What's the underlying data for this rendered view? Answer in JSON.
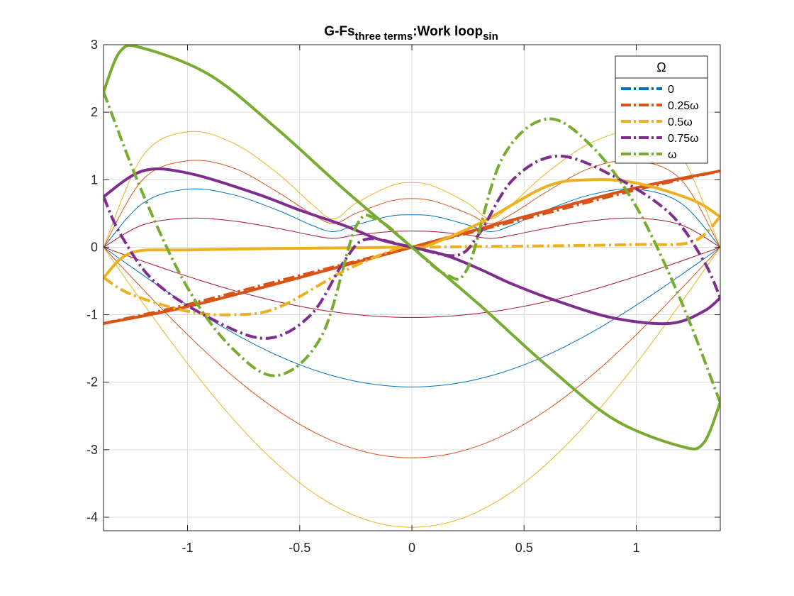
{
  "chart_data": {
    "type": "line",
    "title": "G-Fs",
    "title_sub1": "three terms",
    "title_mid": ":Work loop",
    "title_sub2": "sin",
    "xlabel": "",
    "ylabel": "",
    "xlim": [
      -1.3744,
      1.3744
    ],
    "ylim": [
      -4.2,
      3.0
    ],
    "xticks": [
      -1,
      -0.5,
      0,
      0.5,
      1
    ],
    "xtick_labels": [
      "-1",
      "-0.5",
      "0",
      "0.5",
      "1"
    ],
    "yticks": [
      -4,
      -3,
      -2,
      -1,
      0,
      1,
      2,
      3
    ],
    "ytick_labels": [
      "-4",
      "-3",
      "-2",
      "-1",
      "0",
      "1",
      "2",
      "3"
    ],
    "grid": true,
    "legend": {
      "title": "Ω",
      "placement": "top-right",
      "entries": [
        {
          "label": "0",
          "color": "#0072BD"
        },
        {
          "label": "0.25ω",
          "color": "#D95319"
        },
        {
          "label": "0.5ω",
          "color": "#EDB120"
        },
        {
          "label": "0.75ω",
          "color": "#7E2F8E"
        },
        {
          "label": "ω",
          "color": "#77AC30"
        }
      ]
    },
    "thin_loops": [
      {
        "color": "#0072BD",
        "upper": {
          "x": [
            -1.374,
            -1.2,
            -1.0,
            -0.8,
            -0.6,
            -0.45,
            -0.35,
            -0.25,
            -0.1,
            0.0,
            0.1,
            0.25,
            0.35,
            0.45,
            0.6,
            0.8,
            1.0,
            1.2,
            1.374
          ],
          "y": [
            0,
            0.65,
            0.86,
            0.78,
            0.55,
            0.33,
            0.23,
            0.33,
            0.46,
            0.48,
            0.46,
            0.33,
            0.23,
            0.33,
            0.55,
            0.78,
            0.86,
            0.65,
            0
          ]
        },
        "lower_min": -2.07
      },
      {
        "color": "#D95319",
        "upper": {
          "x": [
            -1.374,
            -1.2,
            -1.0,
            -0.8,
            -0.6,
            -0.45,
            -0.35,
            -0.25,
            -0.1,
            0.0,
            0.1,
            0.25,
            0.35,
            0.45,
            0.6,
            0.8,
            1.0,
            1.2,
            1.374
          ],
          "y": [
            0,
            1.0,
            1.28,
            1.18,
            0.82,
            0.5,
            0.35,
            0.5,
            0.68,
            0.72,
            0.68,
            0.5,
            0.35,
            0.5,
            0.82,
            1.18,
            1.28,
            1.0,
            0
          ]
        },
        "lower_min": -3.12
      },
      {
        "color": "#EDB120",
        "upper": {
          "x": [
            -1.374,
            -1.2,
            -1.0,
            -0.8,
            -0.6,
            -0.45,
            -0.35,
            -0.25,
            -0.1,
            0.0,
            0.1,
            0.25,
            0.35,
            0.45,
            0.6,
            0.8,
            1.0,
            1.2,
            1.374
          ],
          "y": [
            0,
            1.35,
            1.71,
            1.55,
            1.1,
            0.65,
            0.42,
            0.65,
            0.9,
            0.96,
            0.9,
            0.65,
            0.42,
            0.65,
            1.1,
            1.55,
            1.71,
            1.35,
            0
          ]
        },
        "lower_min": -4.15
      },
      {
        "color": "#A2142F",
        "upper": {
          "x": [
            -1.374,
            -1.2,
            -1.0,
            -0.8,
            -0.6,
            -0.45,
            -0.35,
            -0.25,
            -0.1,
            0.0,
            0.1,
            0.25,
            0.35,
            0.45,
            0.6,
            0.8,
            1.0,
            1.2,
            1.374
          ],
          "y": [
            0,
            0.33,
            0.43,
            0.39,
            0.28,
            0.18,
            0.13,
            0.18,
            0.23,
            0.24,
            0.23,
            0.18,
            0.13,
            0.18,
            0.28,
            0.39,
            0.43,
            0.33,
            0
          ]
        },
        "lower_min": -1.04
      }
    ],
    "series": [
      {
        "name": "0.25ω",
        "color": "#D95319",
        "thick": {
          "x": [
            -1.374,
            -1.0,
            -0.5,
            0.0,
            0.5,
            1.0,
            1.374
          ],
          "y": [
            -1.13,
            -0.88,
            -0.45,
            0.0,
            0.45,
            0.88,
            1.13
          ]
        },
        "dashed": {
          "x": [
            -1.374,
            -1.0,
            -0.5,
            0.0,
            0.5,
            1.0,
            1.374
          ],
          "y": [
            -1.13,
            -0.85,
            -0.42,
            0.0,
            0.42,
            0.85,
            1.13
          ]
        }
      },
      {
        "name": "0.5ω",
        "color": "#EDB120",
        "thick": {
          "x": [
            -1.374,
            -1.25,
            -1.0,
            -0.6,
            -0.3,
            -0.05,
            0.0,
            0.05,
            0.3,
            0.6,
            0.8,
            1.0,
            1.25,
            1.374
          ],
          "y": [
            -0.45,
            -0.08,
            -0.04,
            -0.02,
            -0.01,
            0.0,
            0.0,
            0.0,
            0.35,
            0.9,
            1.0,
            0.95,
            0.7,
            0.45
          ]
        },
        "dashed": {
          "x": [
            -1.374,
            -1.25,
            -1.0,
            -0.8,
            -0.6,
            -0.3,
            -0.05,
            0.0,
            0.05,
            0.3,
            0.6,
            1.0,
            1.25,
            1.374
          ],
          "y": [
            -0.45,
            -0.7,
            -0.95,
            -1.0,
            -0.9,
            -0.35,
            0.0,
            0.0,
            0.0,
            0.01,
            0.02,
            0.04,
            0.08,
            0.45
          ]
        }
      },
      {
        "name": "0.75ω",
        "color": "#7E2F8E",
        "thick": {
          "x": [
            -1.374,
            -1.2,
            -1.0,
            -0.7,
            -0.5,
            -0.3,
            -0.15,
            0.0,
            0.15,
            0.3,
            0.45,
            0.65,
            0.9,
            1.15,
            1.3,
            1.374
          ],
          "y": [
            0.75,
            1.13,
            1.1,
            0.8,
            0.55,
            0.32,
            0.12,
            0.0,
            -0.12,
            -0.32,
            -0.55,
            -0.8,
            -1.05,
            -1.13,
            -0.95,
            -0.75
          ]
        },
        "dashed": {
          "x": [
            -1.374,
            -1.3,
            -1.15,
            -0.9,
            -0.65,
            -0.45,
            -0.3,
            -0.2,
            0.0,
            0.2,
            0.3,
            0.45,
            0.65,
            0.9,
            1.15,
            1.3,
            1.374
          ],
          "y": [
            0.75,
            0.2,
            -0.5,
            -1.05,
            -1.35,
            -1.0,
            -0.2,
            0.12,
            0.0,
            -0.12,
            0.2,
            1.0,
            1.35,
            1.05,
            0.5,
            -0.2,
            -0.75
          ]
        }
      },
      {
        "name": "ω",
        "color": "#77AC30",
        "thick": {
          "x": [
            -1.374,
            -1.3,
            -1.2,
            -0.9,
            -0.6,
            -0.3,
            0.0,
            0.3,
            0.6,
            0.9,
            1.2,
            1.3,
            1.374
          ],
          "y": [
            2.3,
            2.9,
            2.95,
            2.55,
            1.75,
            0.85,
            0.0,
            -0.85,
            -1.75,
            -2.55,
            -2.95,
            -2.9,
            -2.3
          ]
        },
        "dashed": {
          "x": [
            -1.374,
            -1.2,
            -1.0,
            -0.8,
            -0.6,
            -0.4,
            -0.25,
            -0.15,
            0.0,
            0.15,
            0.25,
            0.4,
            0.6,
            0.8,
            1.0,
            1.2,
            1.374
          ],
          "y": [
            2.3,
            0.8,
            -0.6,
            -1.5,
            -1.9,
            -1.3,
            0.3,
            0.4,
            0.0,
            -0.4,
            -0.3,
            1.3,
            1.9,
            1.5,
            0.6,
            -0.8,
            -2.3
          ]
        }
      }
    ]
  }
}
